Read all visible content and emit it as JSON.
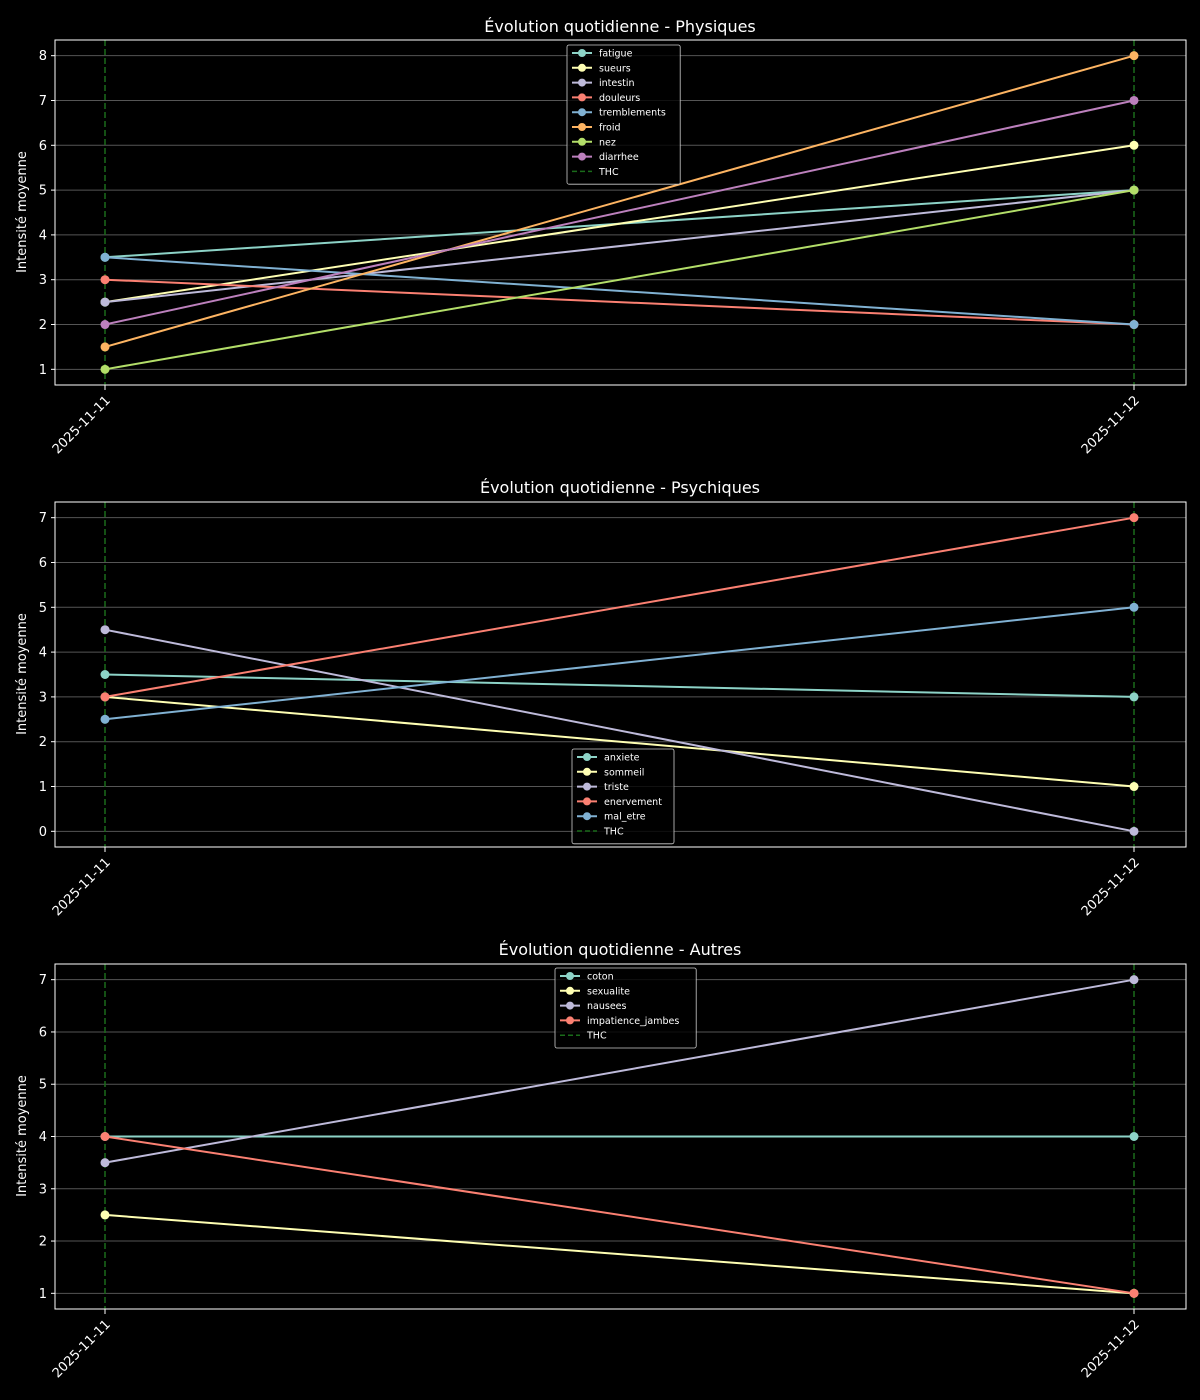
{
  "colors": {
    "background": "#000000",
    "grid": "#555555",
    "thc": "#1a6b1a",
    "palette": [
      "#8dd3c7",
      "#ffffb3",
      "#bebada",
      "#fb8072",
      "#80b1d3",
      "#fdb462",
      "#b3de69",
      "#bc80bd"
    ]
  },
  "chart_data": [
    {
      "type": "line",
      "title": "Évolution quotidienne - Physiques",
      "xlabel": "",
      "ylabel": "Intensité moyenne",
      "x": [
        "2025-11-11",
        "2025-11-12"
      ],
      "yticks": [
        1,
        2,
        3,
        4,
        5,
        6,
        7,
        8
      ],
      "ylim": [
        0.65,
        8.35
      ],
      "grid": true,
      "legend_position": "top-center",
      "thc_markers": [
        "2025-11-11",
        "2025-11-12"
      ],
      "thc_label": "THC",
      "series": [
        {
          "name": "fatigue",
          "values": [
            3.5,
            5
          ]
        },
        {
          "name": "sueurs",
          "values": [
            2.5,
            6
          ]
        },
        {
          "name": "intestin",
          "values": [
            2.5,
            5
          ]
        },
        {
          "name": "douleurs",
          "values": [
            3,
            2
          ]
        },
        {
          "name": "tremblements",
          "values": [
            3.5,
            2
          ]
        },
        {
          "name": "froid",
          "values": [
            1.5,
            8
          ]
        },
        {
          "name": "nez",
          "values": [
            1,
            5
          ]
        },
        {
          "name": "diarrhee",
          "values": [
            2,
            7
          ]
        }
      ]
    },
    {
      "type": "line",
      "title": "Évolution quotidienne - Psychiques",
      "xlabel": "",
      "ylabel": "Intensité moyenne",
      "x": [
        "2025-11-11",
        "2025-11-12"
      ],
      "yticks": [
        0,
        1,
        2,
        3,
        4,
        5,
        6,
        7
      ],
      "ylim": [
        -0.35,
        7.35
      ],
      "grid": true,
      "legend_position": "bottom-center",
      "thc_markers": [
        "2025-11-11",
        "2025-11-12"
      ],
      "thc_label": "THC",
      "series": [
        {
          "name": "anxiete",
          "values": [
            3.5,
            3
          ]
        },
        {
          "name": "sommeil",
          "values": [
            3,
            1
          ]
        },
        {
          "name": "triste",
          "values": [
            4.5,
            0
          ]
        },
        {
          "name": "enervement",
          "values": [
            3,
            7
          ]
        },
        {
          "name": "mal_etre",
          "values": [
            2.5,
            5
          ]
        }
      ]
    },
    {
      "type": "line",
      "title": "Évolution quotidienne - Autres",
      "xlabel": "",
      "ylabel": "Intensité moyenne",
      "x": [
        "2025-11-11",
        "2025-11-12"
      ],
      "yticks": [
        1,
        2,
        3,
        4,
        5,
        6,
        7
      ],
      "ylim": [
        0.7,
        7.3
      ],
      "grid": true,
      "legend_position": "top-center",
      "thc_markers": [
        "2025-11-11",
        "2025-11-12"
      ],
      "thc_label": "THC",
      "series": [
        {
          "name": "coton",
          "values": [
            4,
            4
          ]
        },
        {
          "name": "sexualite",
          "values": [
            2.5,
            1
          ]
        },
        {
          "name": "nausees",
          "values": [
            3.5,
            7
          ]
        },
        {
          "name": "impatience_jambes",
          "values": [
            4,
            1
          ]
        }
      ]
    }
  ]
}
